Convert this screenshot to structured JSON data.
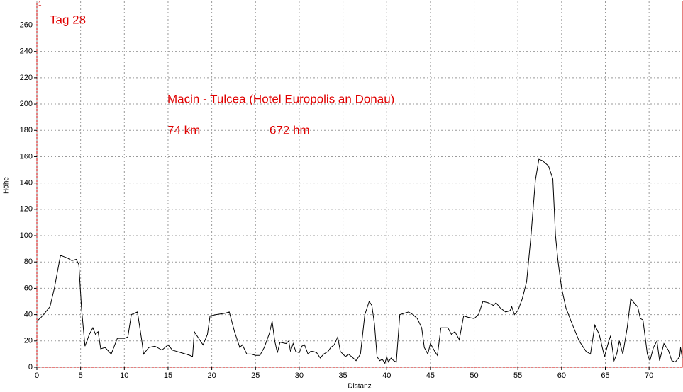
{
  "chart_data": {
    "type": "line",
    "corner_mark": "1",
    "annotations": [
      "Tag 28",
      "Macin - Tulcea (Hotel Europolis an Donau)",
      "74 km",
      "672 hm"
    ],
    "xlabel": "Distanz",
    "ylabel": "Höhe",
    "color": "#000000",
    "grid": true,
    "xlim": [
      0,
      73.8
    ],
    "ylim": [
      0,
      278
    ],
    "xticks": [
      0,
      5,
      10,
      15,
      20,
      25,
      30,
      35,
      40,
      45,
      50,
      55,
      60,
      65,
      70
    ],
    "yticks": [
      0,
      20,
      40,
      60,
      80,
      100,
      120,
      140,
      160,
      180,
      200,
      220,
      240,
      260
    ],
    "x": [
      0,
      0.5,
      1,
      1.5,
      2,
      2.7,
      3.5,
      4,
      4.5,
      4.8,
      5.1,
      5.5,
      6,
      6.4,
      6.7,
      7,
      7.3,
      7.8,
      8.5,
      9.2,
      10,
      10.4,
      10.8,
      11.5,
      12,
      12.2,
      12.8,
      13.5,
      14.3,
      15,
      15.5,
      16.5,
      17.5,
      17.8,
      18,
      18.5,
      19,
      19.5,
      19.8,
      20.5,
      21.5,
      22,
      22.6,
      23.2,
      23.5,
      24,
      24.5,
      25,
      25.5,
      26,
      26.6,
      26.9,
      27.2,
      27.5,
      27.8,
      28.5,
      28.8,
      29,
      29.3,
      29.6,
      30,
      30.3,
      30.6,
      31,
      31.3,
      31.6,
      32,
      32.4,
      32.8,
      33.3,
      33.6,
      34,
      34.4,
      34.7,
      35,
      35.3,
      35.6,
      36,
      36.5,
      37,
      37.5,
      38,
      38.3,
      38.6,
      38.9,
      39.2,
      39.5,
      39.8,
      40,
      40.2,
      40.5,
      40.8,
      41.1,
      41.5,
      42.5,
      43,
      43.5,
      44,
      44.3,
      44.7,
      45,
      45.5,
      45.8,
      46.2,
      47,
      47.4,
      47.8,
      48.3,
      48.8,
      49.3,
      50,
      50.5,
      51,
      51.6,
      52.2,
      52.5,
      53,
      53.6,
      54.1,
      54.3,
      54.6,
      55,
      55.5,
      56,
      56.5,
      57,
      57.4,
      57.8,
      58.5,
      59,
      59.3,
      59.6,
      60,
      60.5,
      61.2,
      62,
      62.8,
      63.3,
      63.8,
      64.3,
      64.9,
      65.4,
      65.6,
      66,
      66.3,
      66.6,
      67,
      67.5,
      67.9,
      68.4,
      68.7,
      69,
      69.3,
      69.8,
      70.1,
      70.5,
      70.9,
      71.2,
      71.7,
      72.2,
      72.6,
      73,
      73.5,
      73.6,
      73.8
    ],
    "values": [
      35,
      38,
      42,
      46,
      60,
      85,
      83,
      81,
      82,
      78,
      45,
      16,
      25,
      30,
      25,
      27,
      14,
      15,
      10,
      22,
      22,
      23,
      40,
      42,
      20,
      10,
      15,
      16,
      13,
      17,
      13,
      11,
      9,
      8,
      27,
      22,
      17,
      25,
      39,
      40,
      41,
      42,
      27,
      15,
      17,
      10,
      10,
      9,
      9,
      15,
      26,
      35,
      20,
      11,
      19,
      18,
      20,
      12,
      18,
      12,
      11,
      16,
      17,
      10,
      12,
      12,
      11,
      7,
      10,
      12,
      15,
      17,
      23,
      12,
      10,
      8,
      10,
      8,
      5,
      10,
      40,
      50,
      47,
      33,
      8,
      5,
      6,
      3,
      8,
      4,
      7,
      5,
      4,
      40,
      42,
      40,
      37,
      30,
      15,
      10,
      18,
      12,
      9,
      30,
      30,
      25,
      27,
      21,
      39,
      38,
      37,
      40,
      50,
      49,
      47,
      49,
      45,
      42,
      43,
      46,
      40,
      43,
      52,
      65,
      100,
      142,
      158,
      157,
      153,
      143,
      100,
      80,
      60,
      45,
      33,
      20,
      12,
      10,
      32,
      25,
      8,
      20,
      24,
      5,
      10,
      20,
      10,
      30,
      52,
      48,
      46,
      37,
      36,
      10,
      5,
      15,
      20,
      5,
      18,
      13,
      5,
      4,
      8,
      15,
      7
    ]
  }
}
